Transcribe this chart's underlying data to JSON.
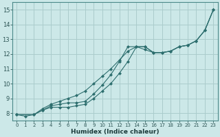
{
  "xlabel": "Humidex (Indice chaleur)",
  "ylabel": "",
  "background_color": "#cce8e8",
  "grid_color": "#aacccc",
  "line_color": "#2d6e6e",
  "xlim": [
    -0.5,
    23.5
  ],
  "ylim": [
    7.5,
    15.5
  ],
  "xticks": [
    0,
    1,
    2,
    3,
    4,
    5,
    6,
    7,
    8,
    9,
    10,
    11,
    12,
    13,
    14,
    15,
    16,
    17,
    18,
    19,
    20,
    21,
    22,
    23
  ],
  "yticks": [
    8,
    9,
    10,
    11,
    12,
    13,
    14,
    15
  ],
  "series1_x": [
    0,
    1,
    2,
    3,
    4,
    5,
    6,
    7,
    8,
    9,
    10,
    11,
    12,
    13,
    14,
    15,
    16,
    17,
    18,
    19,
    20,
    21,
    22,
    23
  ],
  "series1_y": [
    7.9,
    7.8,
    7.9,
    8.2,
    8.4,
    8.4,
    8.4,
    8.5,
    8.6,
    9.0,
    9.5,
    10.0,
    10.7,
    11.5,
    12.5,
    12.5,
    12.1,
    12.1,
    12.2,
    12.5,
    12.6,
    12.9,
    13.6,
    15.0
  ],
  "series2_x": [
    0,
    2,
    3,
    4,
    5,
    6,
    7,
    8,
    9,
    10,
    11,
    12,
    13,
    14,
    15,
    16,
    17,
    18,
    19,
    20,
    21,
    22,
    23
  ],
  "series2_y": [
    7.9,
    7.9,
    8.2,
    8.5,
    8.6,
    8.7,
    8.7,
    8.8,
    9.3,
    9.9,
    10.6,
    11.5,
    12.5,
    12.5,
    12.5,
    12.1,
    12.1,
    12.2,
    12.5,
    12.6,
    12.9,
    13.6,
    15.0
  ],
  "series3_x": [
    0,
    2,
    3,
    4,
    5,
    6,
    7,
    8,
    9,
    10,
    11,
    12,
    13,
    14,
    15,
    16,
    17,
    18,
    19,
    20,
    21,
    22,
    23
  ],
  "series3_y": [
    7.9,
    7.9,
    8.3,
    8.6,
    8.8,
    9.0,
    9.2,
    9.5,
    10.0,
    10.5,
    11.0,
    11.6,
    12.2,
    12.5,
    12.3,
    12.1,
    12.1,
    12.2,
    12.5,
    12.6,
    12.9,
    13.6,
    15.0
  ]
}
